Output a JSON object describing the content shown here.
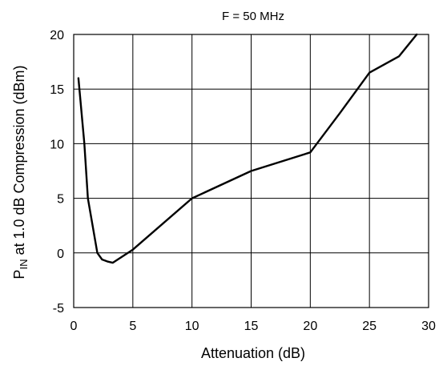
{
  "chart_data": {
    "type": "line",
    "title": "F = 50 MHz",
    "xlabel": "Attenuation (dB)",
    "ylabel": {
      "prefix": "P",
      "subscript": "IN",
      "rest": " at 1.0 dB Compression (dBm)"
    },
    "xlim": [
      0,
      30
    ],
    "ylim": [
      -5,
      20
    ],
    "x_ticks": [
      0,
      5,
      10,
      15,
      20,
      25,
      30
    ],
    "y_ticks": [
      -5,
      0,
      5,
      10,
      15,
      20
    ],
    "grid": true,
    "series": [
      {
        "color": "#000000",
        "x": [
          0.4,
          0.9,
          1.2,
          2.0,
          2.4,
          2.9,
          3.3,
          5.0,
          10.0,
          15.0,
          20.0,
          22.5,
          25.0,
          27.5,
          29.0
        ],
        "y": [
          16.0,
          10.0,
          5.0,
          0.0,
          -0.6,
          -0.8,
          -0.9,
          0.3,
          5.0,
          7.5,
          9.2,
          12.8,
          16.5,
          18.0,
          20.0
        ]
      }
    ]
  }
}
